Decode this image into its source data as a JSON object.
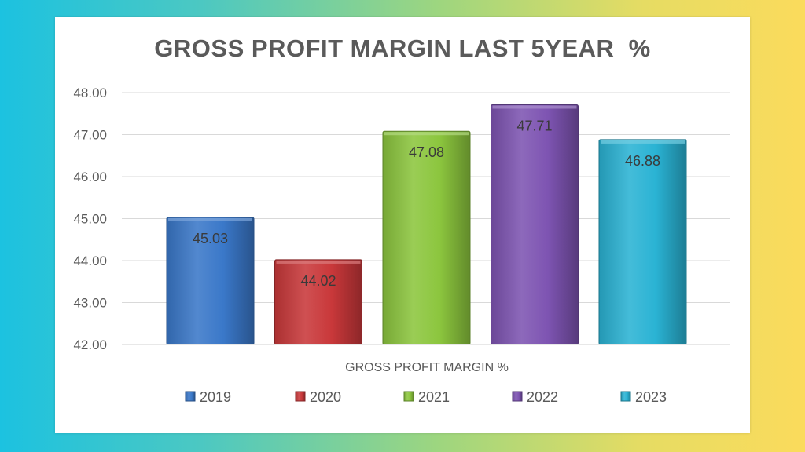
{
  "chart_data": {
    "type": "bar",
    "title": "GROSS PROFIT MARGIN LAST 5YEAR  %",
    "xlabel": "GROSS PROFIT MARGIN %",
    "ylabel": "",
    "ylim": [
      42,
      48
    ],
    "yticks": [
      "42.00",
      "43.00",
      "44.00",
      "45.00",
      "46.00",
      "47.00",
      "48.00"
    ],
    "grid": true,
    "legend_position": "bottom",
    "series": [
      {
        "name": "2019",
        "value": 45.03,
        "label": "45.03",
        "color": "#3a78c9"
      },
      {
        "name": "2020",
        "value": 44.02,
        "label": "44.02",
        "color": "#c9383a"
      },
      {
        "name": "2021",
        "value": 47.08,
        "label": "47.08",
        "color": "#8cc63e"
      },
      {
        "name": "2022",
        "value": 47.71,
        "label": "47.71",
        "color": "#7e54b2"
      },
      {
        "name": "2023",
        "value": 46.88,
        "label": "46.88",
        "color": "#2ab3d4"
      }
    ]
  }
}
